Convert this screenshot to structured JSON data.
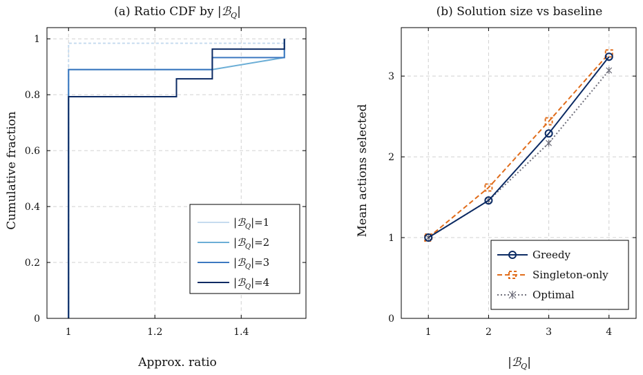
{
  "chart_data": [
    {
      "type": "line",
      "step": true,
      "title": "(a) Ratio CDF by |ℬ_Q|",
      "xlabel": "Approx. ratio",
      "ylabel": "Cumulative fraction",
      "xlim": [
        0.95,
        1.55
      ],
      "ylim": [
        0,
        1.04
      ],
      "xticks": [
        1,
        1.2,
        1.4
      ],
      "xtick_labels": [
        "1",
        "1.2",
        "1.4"
      ],
      "yticks": [
        0,
        0.2,
        0.4,
        0.6,
        0.8,
        1
      ],
      "ytick_labels": [
        "0",
        "0.2",
        "0.4",
        "0.6",
        "0.8",
        "1"
      ],
      "grid": true,
      "legend_position": "bottom-right",
      "series": [
        {
          "name": "|ℬ_Q|=1",
          "color": "#c6dbef",
          "x": [
            1,
            1,
            1.5,
            1.5
          ],
          "y": [
            0,
            0.984,
            0.984,
            1.0
          ]
        },
        {
          "name": "|ℬ_Q|=2",
          "color": "#6baed6",
          "x": [
            1,
            1,
            1.333,
            1.333,
            1.5,
            1.5
          ],
          "y": [
            0,
            0.89,
            0.89,
            0.89,
            0.933,
            1.0
          ]
        },
        {
          "name": "|ℬ_Q|=3",
          "color": "#3c78c0",
          "x": [
            1,
            1,
            1.333,
            1.333,
            1.5,
            1.5
          ],
          "y": [
            0,
            0.89,
            0.89,
            0.933,
            0.933,
            1.0
          ]
        },
        {
          "name": "|ℬ_Q|=4",
          "color": "#0b2a63",
          "x": [
            1,
            1,
            1.25,
            1.25,
            1.333,
            1.333,
            1.5,
            1.5
          ],
          "y": [
            0,
            0.793,
            0.793,
            0.857,
            0.857,
            0.963,
            0.963,
            1.0
          ]
        }
      ]
    },
    {
      "type": "line",
      "title": "(b) Solution size vs baseline",
      "xlabel": "|ℬ_Q|",
      "ylabel": "Mean actions selected",
      "xlim": [
        0.55,
        4.45
      ],
      "ylim": [
        0,
        3.6
      ],
      "xticks": [
        1,
        2,
        3,
        4
      ],
      "xtick_labels": [
        "1",
        "2",
        "3",
        "4"
      ],
      "yticks": [
        0,
        1,
        2,
        3
      ],
      "ytick_labels": [
        "0",
        "1",
        "2",
        "3"
      ],
      "grid": true,
      "legend_position": "bottom-right",
      "categories": [
        1,
        2,
        3,
        4
      ],
      "series": [
        {
          "name": "Greedy",
          "color": "#0b2a63",
          "style": "solid",
          "marker": "circle",
          "values": [
            1.0,
            1.46,
            2.29,
            3.24
          ]
        },
        {
          "name": "Singleton-only",
          "color": "#e06c1a",
          "style": "dashed",
          "marker": "square",
          "values": [
            1.0,
            1.62,
            2.44,
            3.28
          ]
        },
        {
          "name": "Optimal",
          "color": "#6e6e7a",
          "style": "dotted",
          "marker": "star",
          "values": [
            1.0,
            1.46,
            2.17,
            3.07
          ]
        }
      ]
    }
  ]
}
